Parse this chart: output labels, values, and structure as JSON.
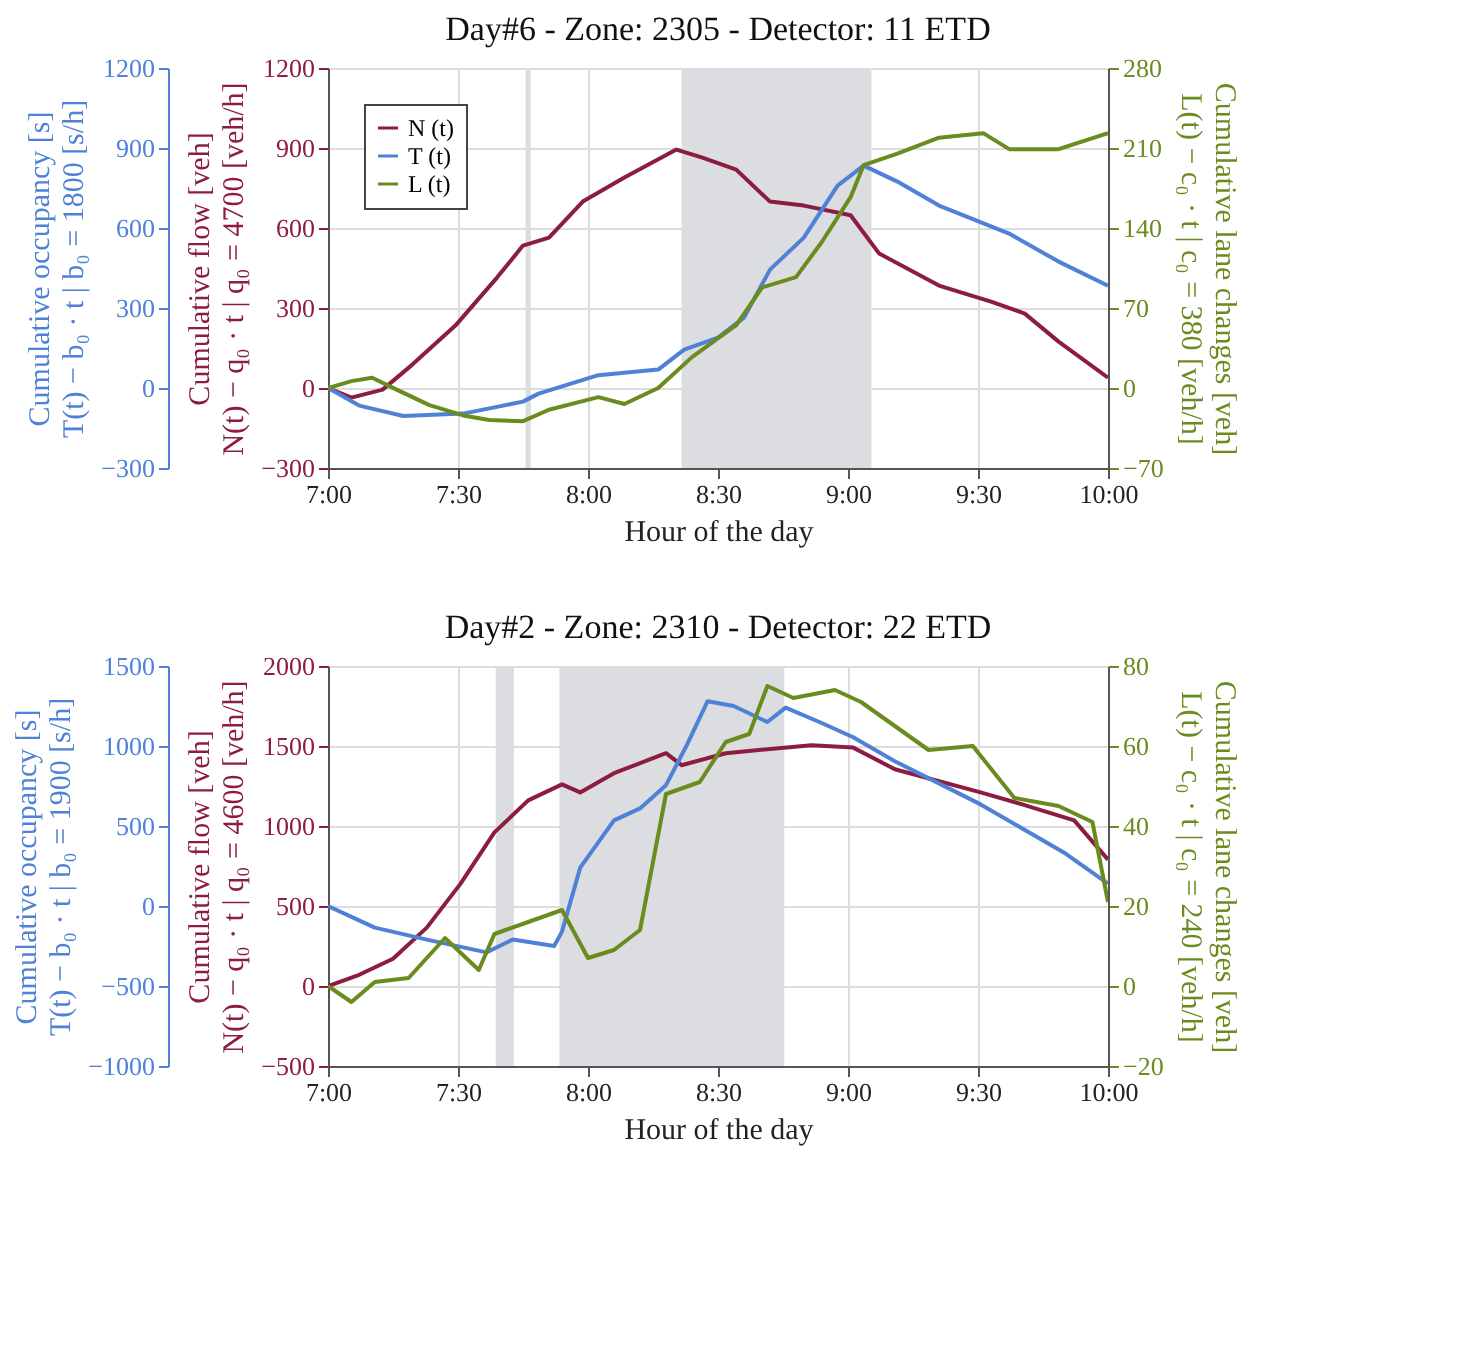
{
  "chart_data": [
    {
      "type": "line",
      "title": "Day#6    -    Zone: 2305    -    Detector: 11 ETD",
      "xlabel": "Hour of the day",
      "ylabel": "Cumulative flow [veh]\nN(t) − q₀ · t  |  q₀ = 4700 [veh/h]",
      "y2label": "Cumulative lane changes [veh]\nL(t) − c₀ · t  |  c₀ = 380 [veh/h]",
      "y3label": "Cumulative occupancy [s]\nT(t) − b₀ · t  |  b₀ = 1800 [s/h]",
      "xlim": [
        7,
        10
      ],
      "xticks": [
        {
          "value": 7,
          "label": "7:00"
        },
        {
          "value": 7.5,
          "label": "7:30"
        },
        {
          "value": 8,
          "label": "8:00"
        },
        {
          "value": 8.5,
          "label": "8:30"
        },
        {
          "value": 9,
          "label": "9:00"
        },
        {
          "value": 9.5,
          "label": "9:30"
        },
        {
          "value": 10,
          "label": "10:00"
        }
      ],
      "ylim": [
        -300,
        1200
      ],
      "yticks": [
        -300,
        0,
        300,
        600,
        900,
        1200
      ],
      "y2lim": [
        -70,
        280
      ],
      "y2ticks": [
        -70,
        0,
        70,
        140,
        210,
        280
      ],
      "y3lim": [
        -300,
        1200
      ],
      "y3ticks": [
        -300,
        0,
        300,
        600,
        900,
        1200
      ],
      "grid": true,
      "legend": "top left",
      "bands": [
        {
          "axis": "x",
          "from": 7.76,
          "to": 7.78,
          "color": "#dcdde0"
        },
        {
          "axis": "x",
          "from": 8.36,
          "to": 9.09,
          "color": "#dcdde0"
        }
      ],
      "series": [
        {
          "name": "N (t)",
          "color": "#8c1d40",
          "x": [
            7,
            7.09,
            7.21,
            7.32,
            7.49,
            7.65,
            7.75,
            7.85,
            7.98,
            8.14,
            8.34,
            8.44,
            8.57,
            8.7,
            8.83,
            9.01,
            9.12,
            9.35,
            9.55,
            9.68,
            9.81,
            10
          ],
          "values": [
            0,
            -36,
            -6,
            84,
            234,
            414,
            534,
            564,
            699,
            789,
            894,
            864,
            819,
            699,
            684,
            648,
            504,
            384,
            324,
            279,
            174,
            39
          ]
        },
        {
          "name": "T (t)",
          "color": "#4f81d6",
          "axis": "y3",
          "x": [
            7,
            7.12,
            7.29,
            7.52,
            7.75,
            7.81,
            8.04,
            8.27,
            8.37,
            8.5,
            8.6,
            8.7,
            8.83,
            8.96,
            9.06,
            9.19,
            9.35,
            9.62,
            9.81,
            10
          ],
          "values": [
            0,
            -66,
            -105,
            -96,
            -51,
            -21,
            48,
            69,
            144,
            189,
            264,
            444,
            564,
            759,
            834,
            774,
            684,
            579,
            474,
            384
          ]
        },
        {
          "name": "L (t)",
          "color": "#6a8c1f",
          "axis": "y2",
          "x": [
            7,
            7.09,
            7.17,
            7.26,
            7.39,
            7.52,
            7.62,
            7.75,
            7.85,
            8.04,
            8.14,
            8.27,
            8.4,
            8.57,
            8.67,
            8.8,
            8.9,
            9.01,
            9.06,
            9.19,
            9.35,
            9.52,
            9.62,
            9.81,
            10
          ],
          "values": [
            0,
            6,
            9,
            -1,
            -15,
            -24,
            -28,
            -29,
            -19,
            -8,
            -14,
            0,
            27,
            55,
            88,
            97,
            128,
            167,
            195,
            205,
            219,
            223,
            209,
            209,
            223
          ]
        }
      ]
    },
    {
      "type": "line",
      "title": "Day#2    -    Zone: 2310    -    Detector: 22 ETD",
      "xlabel": "Hour of the day",
      "ylabel": "Cumulative flow [veh]\nN(t) − q₀ · t  |  q₀ = 4600 [veh/h]",
      "y2label": "Cumulative lane changes [veh]\nL(t) − c₀ · t  |  c₀ = 240 [veh/h]",
      "y3label": "Cumulative occupancy [s]\nT(t) − b₀ · t  |  b₀ = 1900 [s/h]",
      "xlim": [
        7,
        10
      ],
      "xticks": [
        {
          "value": 7,
          "label": "7:00"
        },
        {
          "value": 7.5,
          "label": "7:30"
        },
        {
          "value": 8,
          "label": "8:00"
        },
        {
          "value": 8.5,
          "label": "8:30"
        },
        {
          "value": 9,
          "label": "9:00"
        },
        {
          "value": 9.5,
          "label": "9:30"
        },
        {
          "value": 10,
          "label": "10:00"
        }
      ],
      "ylim": [
        -500,
        2000
      ],
      "yticks": [
        -500,
        0,
        500,
        1000,
        1500,
        2000
      ],
      "y2lim": [
        -20,
        80
      ],
      "y2ticks": [
        -20,
        0,
        20,
        40,
        60,
        80
      ],
      "y3lim": [
        -1000,
        1500
      ],
      "y3ticks": [
        -1000,
        -500,
        0,
        500,
        1000,
        1500
      ],
      "grid": true,
      "legend": "top left",
      "bands": [
        {
          "axis": "x",
          "from": 7.645,
          "to": 7.715,
          "color": "#dcdde0"
        },
        {
          "axis": "x",
          "from": 7.89,
          "to": 8.755,
          "color": "#dcdde0"
        }
      ],
      "series": [
        {
          "name": "N (t)",
          "color": "#8c1d40",
          "x": [
            7,
            7.12,
            7.25,
            7.38,
            7.51,
            7.64,
            7.77,
            7.9,
            7.97,
            8.1,
            8.3,
            8.36,
            8.53,
            8.69,
            8.86,
            9.02,
            9.18,
            9.51,
            9.67,
            9.87,
            10
          ],
          "values": [
            0,
            70,
            170,
            365,
            640,
            960,
            1160,
            1260,
            1210,
            1330,
            1455,
            1380,
            1455,
            1480,
            1505,
            1490,
            1355,
            1210,
            1135,
            1035,
            790
          ]
        },
        {
          "name": "T (t)",
          "color": "#4f81d6",
          "axis": "y3",
          "x": [
            7,
            7.18,
            7.38,
            7.61,
            7.71,
            7.87,
            7.9,
            7.97,
            8.1,
            8.2,
            8.3,
            8.38,
            8.46,
            8.56,
            8.69,
            8.76,
            8.89,
            9.02,
            9.18,
            9.51,
            9.83,
            10
          ],
          "values": [
            0,
            -135,
            -210,
            -290,
            -210,
            -250,
            -160,
            240,
            535,
            610,
            755,
            1005,
            1280,
            1250,
            1150,
            1240,
            1150,
            1055,
            905,
            635,
            335,
            140
          ]
        },
        {
          "name": "L (t)",
          "color": "#6a8c1f",
          "axis": "y2",
          "x": [
            7,
            7.09,
            7.18,
            7.31,
            7.45,
            7.58,
            7.64,
            7.77,
            7.9,
            8,
            8.1,
            8.2,
            8.3,
            8.43,
            8.53,
            8.62,
            8.69,
            8.79,
            8.95,
            9.05,
            9.18,
            9.31,
            9.48,
            9.64,
            9.81,
            9.94,
            10
          ],
          "values": [
            0,
            -4,
            1,
            2,
            12,
            4,
            13,
            16,
            19,
            7,
            9,
            14,
            48,
            51,
            61,
            63,
            75,
            72,
            74,
            71,
            65,
            59,
            60,
            47,
            45,
            41,
            21
          ]
        }
      ]
    }
  ]
}
